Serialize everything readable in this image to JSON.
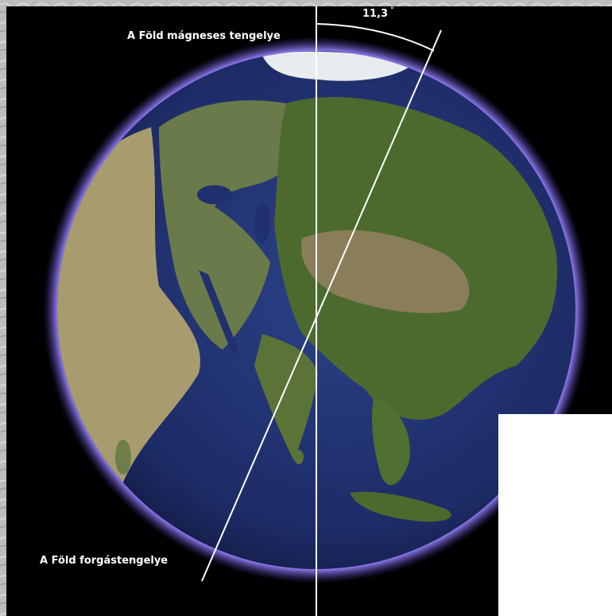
{
  "labels": {
    "magnetic_axis": "A Föld mágneses tengelye",
    "rotation_axis": "A Föld forgástengelye",
    "angle_value": "11,3",
    "angle_unit": "°"
  },
  "colors": {
    "background": "#000000",
    "border_texture": "#b9b9b9",
    "atmosphere_glow": "#6a57d6",
    "ocean": "#20306e",
    "land_green": "#4d6a2e",
    "land_desert": "#a89b6e",
    "axis_lines": "#ffffff"
  },
  "values": {
    "tilt_angle_deg": 11.3
  }
}
